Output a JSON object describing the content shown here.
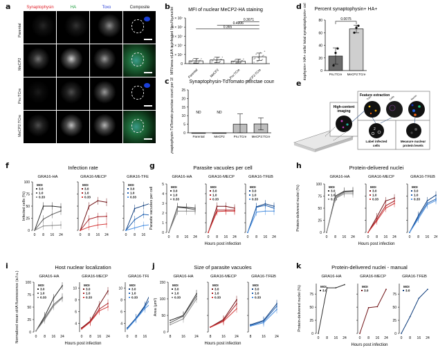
{
  "panel_a": {
    "label": "a",
    "columns": [
      {
        "name": "Synaptophysin",
        "color": "#e0232b"
      },
      {
        "name": "HA",
        "color": "#1a9b3a"
      },
      {
        "name": "Toxo",
        "color": "#2a3fd6"
      },
      {
        "name": "Composite",
        "color": "#111111"
      }
    ],
    "rows": [
      "Parental",
      "MeCP2",
      "Pru:TCre",
      "MeCP2:TCre"
    ]
  },
  "panel_b": {
    "label": "b"
  },
  "panel_c": {
    "label": "c"
  },
  "panel_d": {
    "label": "d"
  },
  "panel_e": {
    "label": "e",
    "boxes": {
      "imaging": "High-content imaging",
      "feature": "Feature extraction",
      "label_cells": "Label infected cells",
      "measure": "Measure nuclear protein levels"
    },
    "circle_labels": [
      "Toxo",
      "Cells",
      "Nuclei"
    ]
  },
  "panel_f": {
    "label": "f"
  },
  "panel_g": {
    "label": "g"
  },
  "panel_h": {
    "label": "h"
  },
  "panel_i": {
    "label": "i"
  },
  "panel_j": {
    "label": "j"
  },
  "panel_k": {
    "label": "k"
  },
  "shared": {
    "xlabel": "Hours post infection",
    "moi_title": "MOI",
    "constructs": [
      "GRA16-HA",
      "GRA16-MECP",
      "GRA16-TFEB"
    ],
    "construct_colors": {
      "GRA16-HA": [
        "#2b2b2b",
        "#5a5a5a",
        "#8a8a8a"
      ],
      "GRA16-MECP": [
        "#6e0f12",
        "#a51c22",
        "#d43a3a"
      ],
      "GRA16-TFEB": [
        "#0b3a7a",
        "#1d5fb0",
        "#4a8fe0"
      ]
    }
  },
  "chart_data": [
    {
      "id": "b",
      "type": "bar",
      "title": "MFI of nuclear MeCP2-HA staining",
      "ylabel": "MFI/area of HA in infected NeuN+ nuclei",
      "categories": [
        "Parental",
        "MeCP2",
        "Pru:TCre",
        "MeCP2:TCre"
      ],
      "values": [
        3000000,
        4000000,
        2800000,
        7500000
      ],
      "errors": [
        2500000,
        3000000,
        2000000,
        4000000
      ],
      "ylim": [
        0,
        50000000
      ],
      "yticks": [
        "0",
        "1 × 10⁷",
        "2 × 10⁷",
        "3 × 10⁷",
        "4 × 10⁷",
        "5 × 10⁷"
      ],
      "comparisons": [
        {
          "from": "MeCP2:TCre",
          "to": "Pru:TCre",
          "p": "0.3071"
        },
        {
          "from": "MeCP2",
          "to": "MeCP2:TCre",
          "p": "0.4906"
        },
        {
          "from": "Parental",
          "to": "MeCP2:TCre",
          "p": "0.365"
        }
      ]
    },
    {
      "id": "c",
      "type": "bar",
      "title": "Synaptophysin-TdTomato punctae count",
      "ylabel": "Synaptophysin-TdTomato punctae count per 18 FOVs",
      "categories": [
        "Parental",
        "MeCP2",
        "Pru:TCre",
        "MeCP2:TCre"
      ],
      "values": [
        0,
        0,
        5,
        5.2
      ],
      "errors": [
        0,
        0,
        6,
        3.5
      ],
      "annotations": [
        "ND",
        "ND",
        "",
        ""
      ],
      "ylim": [
        0,
        25
      ],
      "yticks": [
        "0",
        "5",
        "10",
        "15",
        "20",
        "25"
      ]
    },
    {
      "id": "d",
      "type": "bar",
      "title": "Percent synaptophysin+ HA+",
      "ylabel": "Synaptophysin+ HA+ cells/ total synaptophysin+ cells",
      "categories": [
        "Pru:TCre",
        "MeCP2:TCre"
      ],
      "values": [
        23,
        66
      ],
      "errors": [
        13,
        6
      ],
      "points": [
        [
          8,
          28,
          35
        ],
        [
          60,
          68,
          71
        ]
      ],
      "colors": [
        "#6b6b6b",
        "#cfcfcf"
      ],
      "ylim": [
        0,
        80
      ],
      "yticks": [
        "0",
        "20",
        "40",
        "60",
        "80"
      ],
      "comparison": {
        "p": "0.0075"
      }
    },
    {
      "id": "f",
      "type": "line",
      "title": "Infection rate",
      "ylabel": "Infected cells (%)",
      "x": [
        0,
        8,
        16,
        24
      ],
      "ylim": [
        0,
        100
      ],
      "yticks": [
        "0",
        "25",
        "50",
        "75",
        "100"
      ],
      "panels": [
        {
          "name": "GRA16-HA",
          "series": [
            {
              "name": "3.0",
              "values": [
                0,
                50,
                50,
                48
              ]
            },
            {
              "name": "1.0",
              "values": [
                0,
                23,
                33,
                40
              ]
            },
            {
              "name": "0.33",
              "values": [
                0,
                9,
                10,
                11
              ]
            }
          ]
        },
        {
          "name": "GRA16-MECP",
          "series": [
            {
              "name": "3.0",
              "values": [
                0,
                50,
                61,
                58
              ]
            },
            {
              "name": "1.0",
              "values": [
                0,
                23,
                28,
                29
              ]
            },
            {
              "name": "0.33",
              "values": [
                0,
                7,
                11,
                13
              ]
            }
          ]
        },
        {
          "name": "GRA16-TFEB",
          "series": [
            {
              "name": "3.0",
              "values": [
                0,
                45,
                51,
                57
              ]
            },
            {
              "name": "1.0",
              "values": [
                0,
                22,
                33,
                31
              ]
            },
            {
              "name": "0.33",
              "values": [
                0,
                5,
                10,
                12
              ]
            }
          ]
        }
      ]
    },
    {
      "id": "g",
      "type": "line",
      "title": "Parasite vacuoles per cell",
      "ylabel": "Parasite vacuoles per cell",
      "x": [
        0,
        8,
        16,
        24
      ],
      "ylim": [
        0,
        5
      ],
      "yticks": [
        "0",
        "1",
        "2",
        "3",
        "4",
        "5"
      ],
      "panels": [
        {
          "name": "GRA16-HA",
          "series": [
            {
              "name": "3.0",
              "values": [
                0,
                2.65,
                2.6,
                2.5
              ]
            },
            {
              "name": "1.0",
              "values": [
                0,
                2.6,
                2.5,
                2.35
              ]
            },
            {
              "name": "0.33",
              "values": [
                0,
                2.2,
                2.2,
                2.2
              ]
            }
          ]
        },
        {
          "name": "GRA16-MECP",
          "series": [
            {
              "name": "3.0",
              "values": [
                0,
                2.7,
                2.7,
                2.5
              ]
            },
            {
              "name": "1.0",
              "values": [
                0,
                2.3,
                2.3,
                2.3
              ]
            },
            {
              "name": "0.33",
              "values": [
                0,
                2.15,
                2.2,
                2.2
              ]
            }
          ]
        },
        {
          "name": "GRA16-TFEB",
          "series": [
            {
              "name": "3.0",
              "values": [
                0,
                2.65,
                2.95,
                2.7
              ]
            },
            {
              "name": "1.0",
              "values": [
                0,
                2.6,
                2.8,
                2.5
              ]
            },
            {
              "name": "0.33",
              "values": [
                0,
                2.1,
                2.2,
                2.2
              ]
            }
          ]
        }
      ]
    },
    {
      "id": "h",
      "type": "line",
      "title": "Protein-delivered nuclei",
      "ylabel": "Protein-delivered nuclei (%)",
      "x": [
        0,
        8,
        16,
        24
      ],
      "ylim": [
        0,
        100
      ],
      "yticks": [
        "0",
        "25",
        "50",
        "75",
        "100"
      ],
      "panels": [
        {
          "name": "GRA16-HA",
          "series": [
            {
              "name": "3.0",
              "values": [
                0,
                75,
                85,
                86
              ]
            },
            {
              "name": "1.0",
              "values": [
                0,
                72,
                83,
                84
              ]
            },
            {
              "name": "0.33",
              "values": [
                0,
                70,
                80,
                80
              ]
            }
          ]
        },
        {
          "name": "GRA16-MECP",
          "series": [
            {
              "name": "3.0",
              "values": [
                0,
                32,
                65,
                71
              ]
            },
            {
              "name": "1.0",
              "values": [
                0,
                27,
                55,
                65
              ]
            },
            {
              "name": "0.33",
              "values": [
                0,
                24,
                50,
                60
              ]
            }
          ]
        },
        {
          "name": "GRA16-TFEB",
          "series": [
            {
              "name": "3.0",
              "values": [
                0,
                35,
                65,
                77
              ]
            },
            {
              "name": "1.0",
              "values": [
                0,
                32,
                60,
                69
              ]
            },
            {
              "name": "0.33",
              "values": [
                0,
                28,
                57,
                66
              ]
            }
          ]
        }
      ]
    },
    {
      "id": "i",
      "type": "line",
      "title": "Host nuclear localization",
      "ylabel": "Normalized mean αHA fluorescence (a.f.u.)",
      "x": [
        0,
        8,
        16,
        24
      ],
      "panels": [
        {
          "name": "GRA16-HA",
          "ylim": [
            0,
            100
          ],
          "yticks": [
            "0",
            "25",
            "50",
            "75",
            "100"
          ],
          "series": [
            {
              "name": "3.0",
              "values": [
                2,
                32,
                68,
                93
              ]
            },
            {
              "name": "1.0",
              "values": [
                2,
                28,
                55,
                70
              ]
            },
            {
              "name": "0.33",
              "values": [
                2,
                25,
                52,
                68
              ]
            }
          ]
        },
        {
          "name": "GRA16-MECP",
          "ylim": [
            2.5,
            11
          ],
          "yticks": [
            "4",
            "6",
            "8",
            "10"
          ],
          "series": [
            {
              "name": "3.0",
              "values": [
                3.2,
                4.4,
                7.1,
                9.5
              ]
            },
            {
              "name": "1.0",
              "values": [
                3.1,
                4.3,
                6.4,
                7.4
              ]
            },
            {
              "name": "0.33",
              "values": [
                3.0,
                4.2,
                6.1,
                6.8
              ]
            }
          ]
        },
        {
          "name": "GRA16-TFEB",
          "ylim": [
            2.5,
            11
          ],
          "yticks": [
            "4",
            "6",
            "8",
            "10"
          ],
          "series": [
            {
              "name": "3.0",
              "values": [
                3.2,
                4.9,
                7.0,
                10.2
              ]
            },
            {
              "name": "1.0",
              "values": [
                3.1,
                4.8,
                6.8,
                9.0
              ]
            },
            {
              "name": "0.33",
              "values": [
                3.0,
                4.7,
                6.5,
                7.8
              ]
            }
          ]
        }
      ]
    },
    {
      "id": "j",
      "type": "line",
      "title": "Size of parasite vacuoles",
      "ylabel": "Area (μm²)",
      "x": [
        8,
        16,
        24
      ],
      "ylim": [
        0,
        150
      ],
      "yticks": [
        "0",
        "50",
        "100",
        "150"
      ],
      "panels": [
        {
          "name": "GRA16-HA",
          "series": [
            {
              "name": "3.0",
              "values": [
                35,
                50,
                115
              ]
            },
            {
              "name": "1.0",
              "values": [
                28,
                48,
                108
              ]
            },
            {
              "name": "0.33",
              "values": [
                22,
                40,
                100
              ]
            }
          ]
        },
        {
          "name": "GRA16-MECP",
          "series": [
            {
              "name": "3.0",
              "values": [
                15,
                38,
                97
              ]
            },
            {
              "name": "1.0",
              "values": [
                15,
                35,
                85
              ]
            },
            {
              "name": "0.33",
              "values": [
                14,
                32,
                70
              ]
            }
          ]
        },
        {
          "name": "GRA16-TFEB",
          "series": [
            {
              "name": "3.0",
              "values": [
                22,
                35,
                85
              ]
            },
            {
              "name": "1.0",
              "values": [
                20,
                32,
                78
              ]
            },
            {
              "name": "0.33",
              "values": [
                18,
                28,
                68
              ]
            }
          ]
        }
      ]
    },
    {
      "id": "k",
      "type": "line",
      "title": "Protein-delivered nuclei - manual",
      "ylabel": "Protein-delivered nuclei (%)",
      "x": [
        0,
        8,
        16,
        24
      ],
      "ylim": [
        0,
        95
      ],
      "yticks": [
        "0",
        "25",
        "50",
        "75"
      ],
      "panels": [
        {
          "name": "GRA16-HA",
          "series": [
            {
              "name": "3.0",
              "values": [
                0,
                87,
                87,
                93
              ]
            }
          ]
        },
        {
          "name": "GRA16-MECP",
          "series": [
            {
              "name": "3.0",
              "values": [
                0,
                49,
                51,
                84
              ]
            }
          ]
        },
        {
          "name": "GRA16-TFEB",
          "series": [
            {
              "name": "3.0",
              "values": [
                0,
                32,
                67,
                84
              ]
            }
          ]
        }
      ]
    }
  ]
}
